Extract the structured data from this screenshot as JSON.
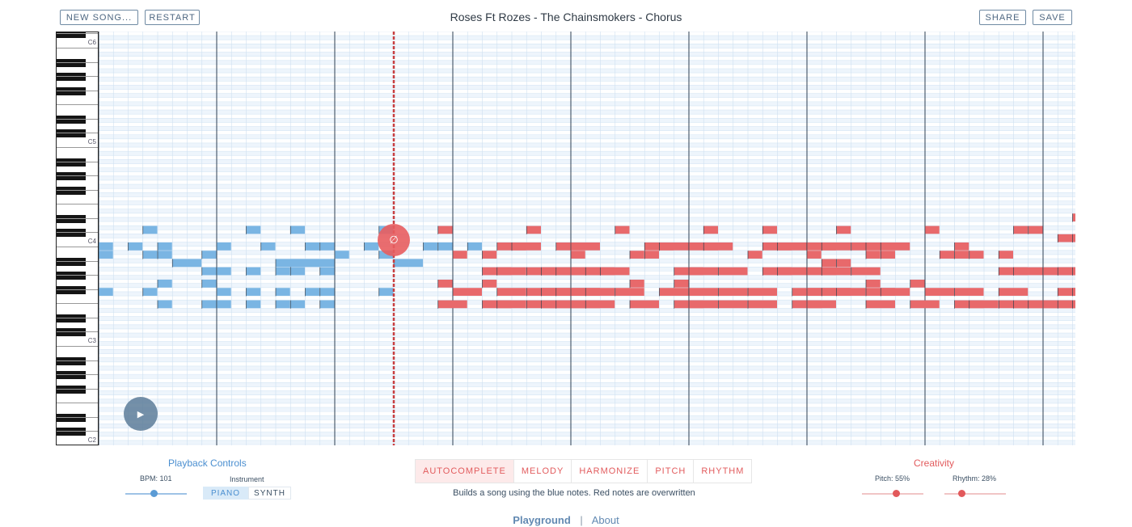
{
  "header": {
    "new_song_label": "NEW SONG...",
    "restart_label": "RESTART",
    "title": "Roses Ft Rozes - The Chainsmokers - Chorus",
    "share_label": "SHARE",
    "save_label": "SAVE"
  },
  "piano": {
    "labels": [
      "C6",
      "C5",
      "C4",
      "C3",
      "C2"
    ]
  },
  "colors": {
    "user_note": "#7ab5e3",
    "ai_note": "#e8696b",
    "grid_light": "#dcebf8",
    "playhead": "#c83f41"
  },
  "roll": {
    "input_notes": [
      [
        0,
        0,
        0
      ],
      [
        2,
        0,
        0
      ],
      [
        4,
        0,
        0
      ],
      [
        8,
        0,
        0
      ],
      [
        11,
        0,
        0
      ],
      [
        14,
        0,
        0
      ],
      [
        15,
        0,
        0
      ],
      [
        18,
        0,
        0
      ],
      [
        22,
        0,
        0
      ],
      [
        23,
        0,
        0
      ],
      [
        25,
        0,
        0
      ],
      [
        5,
        -4,
        1
      ],
      [
        20,
        -4,
        1
      ],
      [
        13,
        -4,
        2
      ],
      [
        12,
        -4,
        2
      ],
      [
        3,
        4,
        0
      ],
      [
        10,
        4,
        0
      ],
      [
        13,
        4,
        0
      ],
      [
        19,
        4,
        0
      ],
      [
        0,
        -2,
        0
      ],
      [
        3,
        -2,
        0
      ],
      [
        4,
        -2,
        0
      ],
      [
        7,
        -2,
        0
      ],
      [
        16,
        -2,
        0
      ],
      [
        19,
        -2,
        0
      ],
      [
        7,
        -6,
        0
      ],
      [
        8,
        -6,
        0
      ],
      [
        10,
        -6,
        0
      ],
      [
        12,
        -6,
        0
      ],
      [
        13,
        -6,
        0
      ],
      [
        15,
        -6,
        0
      ],
      [
        4,
        -9,
        0
      ],
      [
        7,
        -9,
        0
      ],
      [
        0,
        -11,
        0
      ],
      [
        3,
        -11,
        0
      ],
      [
        8,
        -11,
        0
      ],
      [
        10,
        -11,
        0
      ],
      [
        12,
        -11,
        0
      ],
      [
        14,
        -11,
        0
      ],
      [
        15,
        -11,
        0
      ],
      [
        19,
        -11,
        0
      ],
      [
        4,
        -14,
        0
      ],
      [
        7,
        -14,
        0
      ],
      [
        8,
        -14,
        0
      ],
      [
        10,
        -14,
        0
      ],
      [
        12,
        -14,
        0
      ],
      [
        13,
        -14,
        0
      ],
      [
        15,
        -14,
        0
      ]
    ],
    "generated_notes": [
      [
        23,
        4,
        0
      ],
      [
        29,
        4,
        0
      ],
      [
        35,
        4,
        0
      ],
      [
        41,
        4,
        0
      ],
      [
        45,
        4,
        0
      ],
      [
        50,
        4,
        0
      ],
      [
        56,
        4,
        0
      ],
      [
        62,
        4,
        0
      ],
      [
        63,
        4,
        0
      ],
      [
        27,
        0,
        1
      ],
      [
        28,
        0,
        1
      ],
      [
        31,
        0,
        1
      ],
      [
        32,
        0,
        1
      ],
      [
        37,
        0,
        1
      ],
      [
        38,
        0,
        1
      ],
      [
        40,
        0,
        1
      ],
      [
        41,
        0,
        1
      ],
      [
        45,
        0,
        1
      ],
      [
        46,
        0,
        1
      ],
      [
        48,
        0,
        1
      ],
      [
        49,
        0,
        1
      ],
      [
        51,
        0,
        1
      ],
      [
        52,
        0,
        1
      ],
      [
        53,
        0,
        1
      ],
      [
        58,
        0,
        0
      ],
      [
        49,
        -4,
        0
      ],
      [
        50,
        -4,
        0
      ],
      [
        66,
        7,
        1
      ],
      [
        65,
        2,
        1
      ],
      [
        66,
        2,
        1
      ],
      [
        24,
        -2,
        0
      ],
      [
        26,
        -2,
        0
      ],
      [
        32,
        -2,
        0
      ],
      [
        36,
        -2,
        0
      ],
      [
        37,
        -2,
        0
      ],
      [
        44,
        -2,
        0
      ],
      [
        48,
        -2,
        0
      ],
      [
        52,
        -2,
        0
      ],
      [
        53,
        -2,
        0
      ],
      [
        57,
        -2,
        0
      ],
      [
        58,
        -2,
        0
      ],
      [
        59,
        -2,
        0
      ],
      [
        61,
        -2,
        0
      ],
      [
        26,
        -6,
        1
      ],
      [
        27,
        -6,
        1
      ],
      [
        29,
        -6,
        1
      ],
      [
        30,
        -6,
        1
      ],
      [
        31,
        -6,
        1
      ],
      [
        32,
        -6,
        1
      ],
      [
        33,
        -6,
        1
      ],
      [
        34,
        -6,
        1
      ],
      [
        39,
        -6,
        1
      ],
      [
        40,
        -6,
        1
      ],
      [
        42,
        -6,
        1
      ],
      [
        45,
        -6,
        1
      ],
      [
        46,
        -6,
        1
      ],
      [
        48,
        -6,
        1
      ],
      [
        49,
        -6,
        1
      ],
      [
        51,
        -6,
        1
      ],
      [
        61,
        -6,
        1
      ],
      [
        62,
        -6,
        1
      ],
      [
        64,
        -6,
        1
      ],
      [
        65,
        -6,
        1
      ],
      [
        66,
        -6,
        1
      ],
      [
        67,
        -6,
        1
      ],
      [
        68,
        -6,
        1
      ],
      [
        69,
        -6,
        1
      ],
      [
        23,
        -9,
        0
      ],
      [
        26,
        -9,
        0
      ],
      [
        36,
        -9,
        0
      ],
      [
        39,
        -9,
        0
      ],
      [
        52,
        -9,
        0
      ],
      [
        55,
        -9,
        0
      ],
      [
        24,
        -11,
        1
      ],
      [
        27,
        -11,
        1
      ],
      [
        29,
        -11,
        1
      ],
      [
        30,
        -11,
        1
      ],
      [
        31,
        -11,
        1
      ],
      [
        32,
        -11,
        1
      ],
      [
        33,
        -11,
        1
      ],
      [
        35,
        -11,
        1
      ],
      [
        38,
        -11,
        1
      ],
      [
        40,
        -11,
        1
      ],
      [
        42,
        -11,
        1
      ],
      [
        44,
        -11,
        1
      ],
      [
        47,
        -11,
        1
      ],
      [
        48,
        -11,
        1
      ],
      [
        49,
        -11,
        1
      ],
      [
        50,
        -11,
        1
      ],
      [
        52,
        -11,
        1
      ],
      [
        53,
        -11,
        1
      ],
      [
        56,
        -11,
        1
      ],
      [
        58,
        -11,
        1
      ],
      [
        61,
        -11,
        1
      ],
      [
        65,
        -11,
        1
      ],
      [
        66,
        -11,
        1
      ],
      [
        67,
        -11,
        1
      ],
      [
        68,
        -11,
        1
      ],
      [
        69,
        -11,
        1
      ],
      [
        23,
        -14,
        1
      ],
      [
        26,
        -14,
        1
      ],
      [
        27,
        -14,
        1
      ],
      [
        29,
        -14,
        1
      ],
      [
        30,
        -14,
        1
      ],
      [
        31,
        -14,
        1
      ],
      [
        32,
        -14,
        1
      ],
      [
        33,
        -14,
        1
      ],
      [
        36,
        -14,
        1
      ],
      [
        39,
        -14,
        1
      ],
      [
        40,
        -14,
        1
      ],
      [
        42,
        -14,
        1
      ],
      [
        44,
        -14,
        1
      ],
      [
        47,
        -14,
        1
      ],
      [
        48,
        -14,
        1
      ],
      [
        52,
        -14,
        1
      ],
      [
        55,
        -14,
        1
      ],
      [
        58,
        -14,
        1
      ],
      [
        59,
        -14,
        1
      ],
      [
        61,
        -14,
        1
      ],
      [
        62,
        -14,
        1
      ],
      [
        63,
        -14,
        1
      ],
      [
        64,
        -14,
        1
      ],
      [
        65,
        -14,
        1
      ],
      [
        66,
        -14,
        1
      ],
      [
        67,
        -14,
        1
      ],
      [
        68,
        -14,
        1
      ]
    ]
  },
  "playback": {
    "title": "Playback Controls",
    "bpm_label": "BPM: 101",
    "bpm": 101,
    "instrument_label": "Instrument",
    "piano_label": "PIANO",
    "synth_label": "SYNTH",
    "selected_instrument": "PIANO"
  },
  "modes": {
    "items": [
      "AUTOCOMPLETE",
      "MELODY",
      "HARMONIZE",
      "PITCH",
      "RHYTHM"
    ],
    "active": "AUTOCOMPLETE",
    "description": "Builds a song using the blue notes. Red notes are overwritten"
  },
  "creativity": {
    "title": "Creativity",
    "pitch_label": "Pitch: 55%",
    "pitch": 0.55,
    "rhythm_label": "Rhythm: 28%",
    "rhythm": 0.28
  },
  "footer": {
    "playground_label": "Playground",
    "separator": "|",
    "about_label": "About"
  }
}
